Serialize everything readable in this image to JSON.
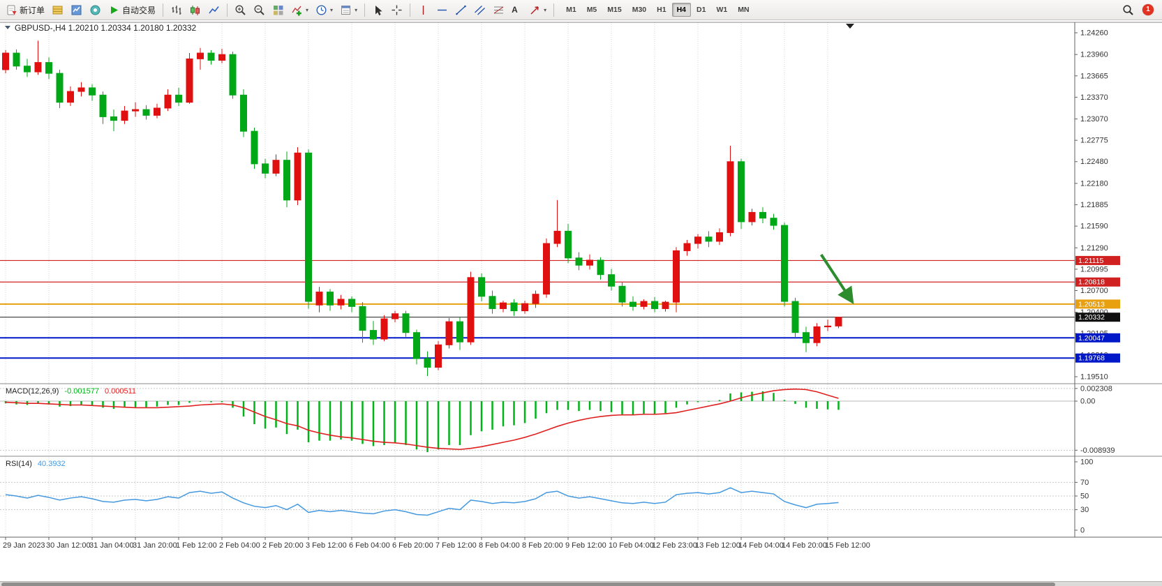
{
  "toolbar": {
    "new_order_label": "新订单",
    "autotrading_label": "自动交易",
    "text_tool_glyph": "A",
    "timeframes": [
      "M1",
      "M5",
      "M15",
      "M30",
      "H1",
      "H4",
      "D1",
      "W1",
      "MN"
    ],
    "active_timeframe": "H4",
    "notification_count": "1"
  },
  "chart_header": {
    "symbol_period": "GBPUSD-,H4",
    "open": "1.20210",
    "high": "1.20334",
    "low": "1.20180",
    "close": "1.20332"
  },
  "price_axis": {
    "labels": [
      "1.24260",
      "1.23960",
      "1.23665",
      "1.23370",
      "1.23070",
      "1.22775",
      "1.22480",
      "1.22180",
      "1.21885",
      "1.21590",
      "1.21290",
      "1.20995",
      "1.20700",
      "1.20400",
      "1.20105",
      "1.19810",
      "1.19510"
    ]
  },
  "time_axis": {
    "labels": [
      "29 Jan 2023",
      "30 Jan 12:00",
      "31 Jan 04:00",
      "31 Jan 20:00",
      "1 Feb 12:00",
      "2 Feb 04:00",
      "2 Feb 20:00",
      "3 Feb 12:00",
      "6 Feb 04:00",
      "6 Feb 20:00",
      "7 Feb 12:00",
      "8 Feb 04:00",
      "8 Feb 20:00",
      "9 Feb 12:00",
      "10 Feb 04:00",
      "12 Feb 23:00",
      "13 Feb 12:00",
      "14 Feb 04:00",
      "14 Feb 20:00",
      "15 Feb 12:00"
    ]
  },
  "macd_axis": {
    "labels": [
      "0.002308",
      "0.00",
      "-0.008939"
    ],
    "values": [
      0.002308,
      0,
      -0.008939
    ]
  },
  "rsi_axis": {
    "labels": [
      "100",
      "70",
      "50",
      "30",
      "0"
    ],
    "values": [
      100,
      70,
      50,
      30,
      0
    ]
  },
  "indicators": {
    "macd": {
      "title": "MACD(12,26,9)",
      "value_main": "-0.001577",
      "value_signal": "0.000511"
    },
    "rsi": {
      "title": "RSI(14)",
      "value": "40.3932"
    }
  },
  "hlines": [
    {
      "price": 1.21115,
      "label": "1.21115",
      "color": "#d02020",
      "width": 1.2
    },
    {
      "price": 1.20818,
      "label": "1.20818",
      "color": "#d02020",
      "width": 1.2
    },
    {
      "price": 1.20513,
      "label": "1.20513",
      "color": "#e8a010",
      "width": 2
    },
    {
      "price": 1.20047,
      "label": "1.20047",
      "color": "#0018c8",
      "width": 2
    },
    {
      "price": 1.19768,
      "label": "1.19768",
      "color": "#0018c8",
      "width": 2
    }
  ],
  "current_price": {
    "price": 1.20332,
    "label": "1.20332"
  },
  "arrow_annotation": {
    "from": {
      "bar": 75.4,
      "price": 1.21196
    },
    "to": {
      "bar": 78.2,
      "price": 1.2056
    },
    "color": "#2d8c2d"
  },
  "colors": {
    "candle_up": "#e01010",
    "candle_down": "#00a818",
    "macd_hist": "#00b418",
    "macd_signal": "#e02020",
    "rsi_line": "#4499e0",
    "grid": "#d6d6d6",
    "axis_text": "#333333",
    "price_line": "#202020"
  },
  "chart_data": [
    {
      "type": "candlestick",
      "symbol": "GBPUSD-",
      "timeframe": "H4",
      "axis": {
        "min": 1.1951,
        "max": 1.2426
      },
      "ohlc": [
        [
          1.2375,
          1.2402,
          1.237,
          1.2398
        ],
        [
          1.2398,
          1.2403,
          1.2375,
          1.238
        ],
        [
          1.238,
          1.239,
          1.2365,
          1.2372
        ],
        [
          1.2372,
          1.2415,
          1.2368,
          1.2385
        ],
        [
          1.2385,
          1.2392,
          1.2362,
          1.237
        ],
        [
          1.237,
          1.2375,
          1.2322,
          1.233
        ],
        [
          1.233,
          1.2352,
          1.2325,
          1.2345
        ],
        [
          1.2345,
          1.2358,
          1.2338,
          1.235
        ],
        [
          1.235,
          1.2355,
          1.2332,
          1.234
        ],
        [
          1.234,
          1.2345,
          1.23,
          1.231
        ],
        [
          1.231,
          1.232,
          1.229,
          1.2305
        ],
        [
          1.2305,
          1.2325,
          1.23,
          1.2318
        ],
        [
          1.2318,
          1.233,
          1.231,
          1.232
        ],
        [
          1.232,
          1.2326,
          1.2306,
          1.2312
        ],
        [
          1.2312,
          1.2328,
          1.2308,
          1.2322
        ],
        [
          1.2322,
          1.2348,
          1.2318,
          1.234
        ],
        [
          1.234,
          1.235,
          1.2325,
          1.233
        ],
        [
          1.233,
          1.2398,
          1.2328,
          1.239
        ],
        [
          1.239,
          1.2405,
          1.2375,
          1.2398
        ],
        [
          1.2398,
          1.2402,
          1.2382,
          1.2388
        ],
        [
          1.2388,
          1.2404,
          1.2384,
          1.2396
        ],
        [
          1.2396,
          1.24,
          1.2335,
          1.234
        ],
        [
          1.234,
          1.2348,
          1.2282,
          1.229
        ],
        [
          1.229,
          1.2295,
          1.2238,
          1.2245
        ],
        [
          1.2245,
          1.2252,
          1.2225,
          1.2232
        ],
        [
          1.2232,
          1.2258,
          1.2228,
          1.225
        ],
        [
          1.225,
          1.2262,
          1.2185,
          1.2195
        ],
        [
          1.2195,
          1.2268,
          1.2188,
          1.226
        ],
        [
          1.226,
          1.2265,
          1.2045,
          1.2055
        ],
        [
          1.205,
          1.2075,
          1.204,
          1.2068
        ],
        [
          1.2068,
          1.2072,
          1.2042,
          1.205
        ],
        [
          1.205,
          1.2064,
          1.2044,
          1.2058
        ],
        [
          1.2058,
          1.2062,
          1.204,
          1.2048
        ],
        [
          1.2048,
          1.2054,
          1.1998,
          1.2015
        ],
        [
          1.2015,
          1.2028,
          1.1995,
          1.2003
        ],
        [
          1.2003,
          1.2036,
          1.2,
          1.2031
        ],
        [
          1.2031,
          1.2042,
          1.2026,
          1.2038
        ],
        [
          1.2038,
          1.2042,
          1.2006,
          1.2012
        ],
        [
          1.2012,
          1.2016,
          1.1968,
          1.1976
        ],
        [
          1.1976,
          1.1986,
          1.1952,
          1.1964
        ],
        [
          1.1964,
          1.2,
          1.196,
          1.1995
        ],
        [
          1.1995,
          1.2032,
          1.199,
          1.2027
        ],
        [
          1.2027,
          1.2033,
          1.1988,
          1.1999
        ],
        [
          1.1999,
          1.2096,
          1.1995,
          1.2088
        ],
        [
          1.2088,
          1.2094,
          1.2055,
          1.2062
        ],
        [
          1.2062,
          1.207,
          1.2038,
          1.2045
        ],
        [
          1.2045,
          1.2056,
          1.204,
          1.2053
        ],
        [
          1.2053,
          1.2058,
          1.2035,
          1.2042
        ],
        [
          1.2042,
          1.2056,
          1.2038,
          1.2052
        ],
        [
          1.2052,
          1.207,
          1.2046,
          1.2065
        ],
        [
          1.2065,
          1.2142,
          1.206,
          1.2135
        ],
        [
          1.2135,
          1.2195,
          1.213,
          1.2152
        ],
        [
          1.2152,
          1.2162,
          1.2108,
          1.2115
        ],
        [
          1.2115,
          1.2123,
          1.2098,
          1.2105
        ],
        [
          1.2105,
          1.212,
          1.2099,
          1.2112
        ],
        [
          1.2112,
          1.2116,
          1.2085,
          1.2092
        ],
        [
          1.2092,
          1.21,
          1.207,
          1.2076
        ],
        [
          1.2076,
          1.2082,
          1.2048,
          1.2054
        ],
        [
          1.2054,
          1.2062,
          1.2042,
          1.2048
        ],
        [
          1.2048,
          1.2058,
          1.2044,
          1.2055
        ],
        [
          1.2055,
          1.2061,
          1.204,
          1.2045
        ],
        [
          1.2045,
          1.2056,
          1.2041,
          1.2054
        ],
        [
          1.2054,
          1.213,
          1.204,
          1.2125
        ],
        [
          1.2125,
          1.214,
          1.2118,
          1.2135
        ],
        [
          1.2135,
          1.2148,
          1.2128,
          1.2144
        ],
        [
          1.2144,
          1.2152,
          1.213,
          1.2138
        ],
        [
          1.2138,
          1.2156,
          1.2133,
          1.215
        ],
        [
          1.215,
          1.227,
          1.2145,
          1.2248
        ],
        [
          1.2248,
          1.2252,
          1.2155,
          1.2165
        ],
        [
          1.2165,
          1.2183,
          1.216,
          1.2178
        ],
        [
          1.2178,
          1.2185,
          1.2163,
          1.217
        ],
        [
          1.217,
          1.2176,
          1.2154,
          1.216
        ],
        [
          1.216,
          1.2164,
          1.2048,
          1.2055
        ],
        [
          1.2055,
          1.206,
          1.2005,
          1.2012
        ],
        [
          1.2012,
          1.202,
          1.1985,
          1.1998
        ],
        [
          1.1998,
          1.2025,
          1.1993,
          1.202
        ],
        [
          1.202,
          1.203,
          1.2014,
          1.2021
        ],
        [
          1.2021,
          1.20334,
          1.2018,
          1.20332
        ]
      ]
    },
    {
      "type": "bar",
      "name": "MACD",
      "ylim": [
        -0.0096,
        0.0026
      ],
      "values": [
        -0.0004,
        -0.0006,
        -0.0007,
        -0.0005,
        -0.0006,
        -0.001,
        -0.0009,
        -0.0007,
        -0.0008,
        -0.0012,
        -0.0014,
        -0.0012,
        -0.0011,
        -0.0011,
        -0.001,
        -0.0007,
        -0.0007,
        -0.0003,
        -0.0001,
        -0.0002,
        -0.0002,
        -0.0012,
        -0.0028,
        -0.0042,
        -0.005,
        -0.0048,
        -0.006,
        -0.0052,
        -0.0075,
        -0.0072,
        -0.0072,
        -0.007,
        -0.0072,
        -0.0078,
        -0.0082,
        -0.008,
        -0.0076,
        -0.008,
        -0.0088,
        -0.0093,
        -0.0088,
        -0.008,
        -0.008,
        -0.0062,
        -0.0055,
        -0.0052,
        -0.0046,
        -0.0044,
        -0.004,
        -0.0032,
        -0.0022,
        -0.0016,
        -0.0016,
        -0.0018,
        -0.0016,
        -0.0018,
        -0.002,
        -0.0024,
        -0.0025,
        -0.0023,
        -0.0024,
        -0.0022,
        -0.0012,
        -0.0006,
        -0.0002,
        -0.0001,
        0.0002,
        0.0014,
        0.0016,
        0.0017,
        0.0018,
        0.0015,
        0.0002,
        -0.0005,
        -0.0012,
        -0.0014,
        -0.0015,
        -0.001577
      ],
      "signal": [
        -0.0002,
        -0.0003,
        -0.0004,
        -0.0004,
        -0.0005,
        -0.0006,
        -0.0007,
        -0.0007,
        -0.0008,
        -0.0009,
        -0.001,
        -0.0011,
        -0.0012,
        -0.0012,
        -0.0012,
        -0.0011,
        -0.001,
        -0.0009,
        -0.0007,
        -0.0006,
        -0.0005,
        -0.0007,
        -0.0012,
        -0.002,
        -0.0028,
        -0.0034,
        -0.0041,
        -0.0045,
        -0.0053,
        -0.0058,
        -0.0062,
        -0.0065,
        -0.0067,
        -0.007,
        -0.0073,
        -0.0075,
        -0.0076,
        -0.0078,
        -0.0081,
        -0.0084,
        -0.0086,
        -0.0087,
        -0.0088,
        -0.0086,
        -0.0083,
        -0.0079,
        -0.0075,
        -0.0071,
        -0.0066,
        -0.006,
        -0.0053,
        -0.0046,
        -0.004,
        -0.0035,
        -0.0031,
        -0.0028,
        -0.0026,
        -0.0025,
        -0.0025,
        -0.0024,
        -0.0024,
        -0.0023,
        -0.0021,
        -0.0017,
        -0.0013,
        -0.0009,
        -0.0005,
        0.0,
        0.0006,
        0.0011,
        0.0015,
        0.0019,
        0.0021,
        0.0022,
        0.0021,
        0.0017,
        0.0011,
        0.000511
      ]
    },
    {
      "type": "line",
      "name": "RSI",
      "ylim": [
        0,
        100
      ],
      "values": [
        52,
        50,
        47,
        51,
        48,
        44,
        47,
        49,
        46,
        42,
        41,
        44,
        45,
        43,
        45,
        49,
        47,
        55,
        57,
        54,
        56,
        47,
        40,
        35,
        33,
        36,
        30,
        38,
        26,
        29,
        27,
        29,
        27,
        25,
        24,
        28,
        30,
        27,
        23,
        22,
        27,
        32,
        30,
        44,
        42,
        39,
        41,
        40,
        42,
        46,
        55,
        57,
        50,
        47,
        49,
        46,
        43,
        40,
        39,
        41,
        39,
        41,
        52,
        54,
        55,
        53,
        55,
        62,
        55,
        57,
        55,
        53,
        42,
        37,
        33,
        38,
        39,
        40.39
      ]
    }
  ]
}
